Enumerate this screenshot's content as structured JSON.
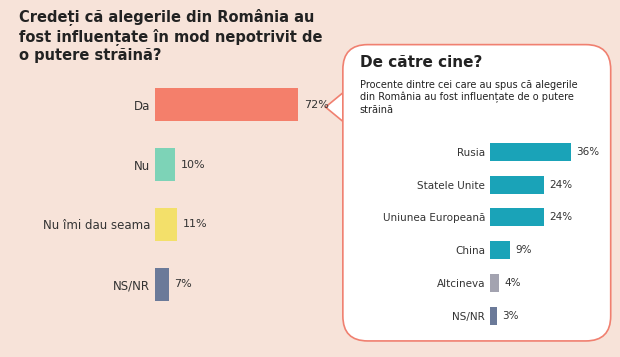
{
  "chart_data": [
    {
      "type": "bar",
      "orientation": "horizontal",
      "title": "Credeți că alegerile din România au fost influențate în mod nepotrivit de o putere străină?",
      "categories": [
        "Da",
        "Nu",
        "Nu îmi dau seama",
        "NS/NR"
      ],
      "values": [
        72,
        10,
        11,
        7
      ],
      "value_labels": [
        "72%",
        "10%",
        "11%",
        "7%"
      ],
      "colors": [
        "#f47f6b",
        "#7dd3b7",
        "#f3e06a",
        "#6b7a99"
      ],
      "data_labels": true,
      "tick_labels": "y"
    },
    {
      "type": "bar",
      "orientation": "horizontal",
      "title": "De către cine?",
      "subtitle": "Procente dintre cei care au spus că alegerile din România au fost influențate de o putere străină",
      "categories": [
        "Rusia",
        "Statele Unite",
        "Uniunea Europeană",
        "China",
        "Altcineva",
        "NS/NR"
      ],
      "values": [
        36,
        24,
        24,
        9,
        4,
        3
      ],
      "value_labels": [
        "36%",
        "24%",
        "24%",
        "9%",
        "4%",
        "3%"
      ],
      "colors": [
        "#1aa3b8",
        "#1aa3b8",
        "#1aa3b8",
        "#1aa3b8",
        "#a3a3b0",
        "#6b7a99"
      ],
      "data_labels": true,
      "tick_labels": "y"
    }
  ]
}
